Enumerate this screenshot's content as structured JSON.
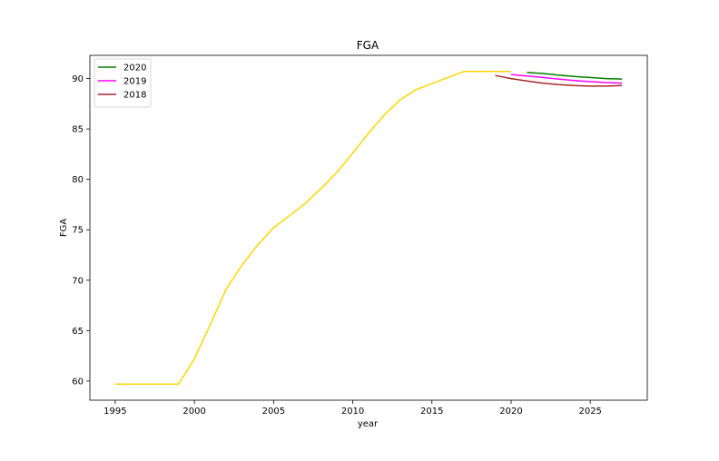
{
  "chart_data": {
    "type": "line",
    "title": "FGA",
    "xlabel": "year",
    "ylabel": "FGA",
    "xlim": [
      1993.4,
      2028.6
    ],
    "ylim": [
      58.1,
      92.3
    ],
    "xticks": [
      1995,
      2000,
      2005,
      2010,
      2015,
      2020,
      2025
    ],
    "yticks": [
      60,
      65,
      70,
      75,
      80,
      85,
      90
    ],
    "grid": false,
    "legend_position": "top-left",
    "series": [
      {
        "color": "#ffd700",
        "x": [
          1995,
          1996,
          1997,
          1998,
          1999,
          2000,
          2001,
          2002,
          2003,
          2004,
          2005,
          2006,
          2007,
          2008,
          2009,
          2010,
          2011,
          2012,
          2013,
          2014,
          2015,
          2016,
          2017,
          2018,
          2019,
          2020
        ],
        "y": [
          59.7,
          59.7,
          59.7,
          59.7,
          59.7,
          62.2,
          65.6,
          69.1,
          71.5,
          73.5,
          75.2,
          76.4,
          77.6,
          79.1,
          80.7,
          82.6,
          84.6,
          86.4,
          87.9,
          88.9,
          89.5,
          90.1,
          90.7,
          90.7,
          90.7,
          90.7
        ]
      },
      {
        "name": "2020",
        "color": "#008000",
        "x": [
          2021,
          2022,
          2023,
          2024,
          2025,
          2026,
          2027
        ],
        "y": [
          90.6,
          90.5,
          90.35,
          90.2,
          90.1,
          90.0,
          89.95
        ]
      },
      {
        "name": "2019",
        "color": "#ff00ff",
        "x": [
          2020,
          2021,
          2022,
          2023,
          2024,
          2025,
          2026,
          2027
        ],
        "y": [
          90.4,
          90.25,
          90.1,
          89.95,
          89.8,
          89.7,
          89.6,
          89.55
        ]
      },
      {
        "name": "2018",
        "color": "#a52a2a",
        "x": [
          2019,
          2020,
          2021,
          2022,
          2023,
          2024,
          2025,
          2026,
          2027
        ],
        "y": [
          90.3,
          90.0,
          89.75,
          89.55,
          89.4,
          89.3,
          89.25,
          89.25,
          89.3
        ]
      }
    ],
    "legend": [
      "2020",
      "2019",
      "2018"
    ]
  }
}
